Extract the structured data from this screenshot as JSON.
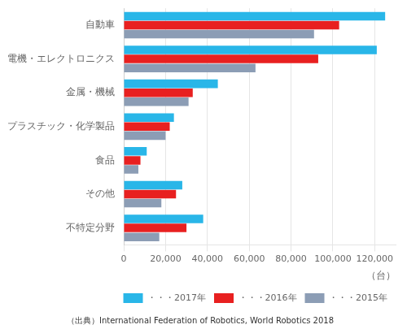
{
  "chart_data": {
    "type": "bar",
    "orientation": "horizontal",
    "categories": [
      "不特定分野",
      "その他",
      "食品",
      "プラスチック・化学製品",
      "金属・機械",
      "電機・エレクトロニクス",
      "自動車"
    ],
    "series": [
      {
        "name": "・・・2017年",
        "color": "#29b6e8",
        "values": [
          38000,
          28000,
          11000,
          24000,
          45000,
          121000,
          125000
        ]
      },
      {
        "name": "・・・2016年",
        "color": "#e82020",
        "values": [
          30000,
          25000,
          8000,
          22000,
          33000,
          93000,
          103000
        ]
      },
      {
        "name": "・・・2015年",
        "color": "#8c9db5",
        "values": [
          17000,
          18000,
          7000,
          20000,
          31000,
          63000,
          91000
        ]
      }
    ],
    "xlabel": "（台）",
    "annotations": [
      "（出典）International Federation of Robotics, World Robotics 2018"
    ],
    "xlim": [
      0,
      130000
    ],
    "xticks": [
      0,
      {
        "value": 20000,
        "label": "20,000"
      },
      {
        "value": 40000,
        "label": "40,000"
      },
      {
        "value": 60000,
        "label": "60,000"
      },
      {
        "value": 80000,
        "label": "80,000"
      },
      {
        "value": 100000,
        "label": "100,000"
      },
      {
        "value": 120000,
        "label": "120,000"
      }
    ],
    "grid": "x",
    "legend": "lower right"
  }
}
